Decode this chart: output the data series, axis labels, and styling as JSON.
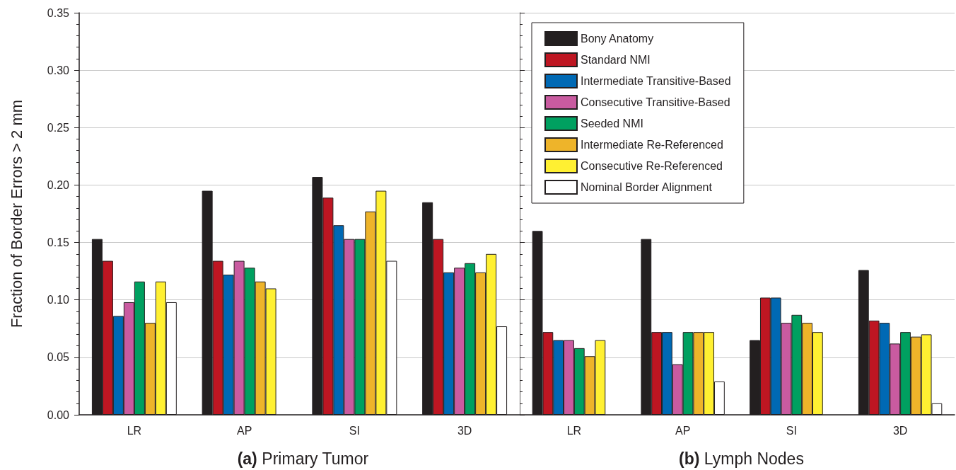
{
  "chart_data": [
    {
      "type": "bar",
      "xlabel": "(a) Primary Tumor",
      "ylabel": "Fraction of Border Errors > 2 mm",
      "categories": [
        "LR",
        "AP",
        "SI",
        "3D"
      ],
      "ylim": [
        0,
        0.35
      ],
      "yticks": [
        {
          "value": 0,
          "label": "0.00"
        },
        0.05,
        {
          "value": 0.1,
          "label": "0.10"
        },
        0.15,
        {
          "value": 0.2,
          "label": "0.20"
        },
        0.25,
        {
          "value": 0.3,
          "label": "0.30"
        },
        0.35
      ],
      "grid": "y",
      "legend": false,
      "series": [
        {
          "color": "#231f20",
          "values": [
            0.153,
            0.195,
            0.207,
            0.185
          ]
        },
        {
          "color": "#be1622",
          "values": [
            0.134,
            0.134,
            0.189,
            0.153
          ]
        },
        {
          "color": "#0069b4",
          "values": [
            0.086,
            0.122,
            0.165,
            0.124
          ]
        },
        {
          "color": "#c95ba0",
          "values": [
            0.098,
            0.134,
            0.153,
            0.128
          ]
        },
        {
          "color": "#00a060",
          "values": [
            0.116,
            0.128,
            0.153,
            0.132
          ]
        },
        {
          "color": "#eeb42a",
          "values": [
            0.08,
            0.116,
            0.177,
            0.124
          ]
        },
        {
          "color": "#fff032",
          "values": [
            0.116,
            0.11,
            0.195,
            0.14
          ]
        },
        {
          "color": "#ffffff",
          "values": [
            0.098,
            null,
            0.134,
            0.077
          ]
        }
      ]
    },
    {
      "type": "bar",
      "xlabel": "(b) Lymph Nodes",
      "categories": [
        "LR",
        "AP",
        "SI",
        "3D"
      ],
      "ylim": [
        0,
        0.35
      ],
      "yticks": [
        0,
        0.05,
        0.1,
        0.15,
        0.2,
        0.25,
        0.3,
        0.35
      ],
      "grid": "y",
      "legend": "top left",
      "tick_labels": "x",
      "series": [
        {
          "name": "Bony Anatomy",
          "color": "#231f20",
          "values": [
            0.16,
            0.153,
            0.065,
            0.126
          ]
        },
        {
          "name": "Standard NMI",
          "color": "#be1622",
          "values": [
            0.072,
            0.072,
            0.102,
            0.082
          ]
        },
        {
          "name": "Intermediate Transitive-Based",
          "color": "#0069b4",
          "values": [
            0.065,
            0.072,
            0.102,
            0.08
          ]
        },
        {
          "name": "Consecutive Transitive-Based",
          "color": "#c95ba0",
          "values": [
            0.065,
            0.044,
            0.08,
            0.062
          ]
        },
        {
          "name": "Seeded NMI",
          "color": "#00a060",
          "values": [
            0.058,
            0.072,
            0.087,
            0.072
          ]
        },
        {
          "name": "Intermediate Re-Referenced",
          "color": "#eeb42a",
          "values": [
            0.051,
            0.072,
            0.08,
            0.068
          ]
        },
        {
          "name": "Consecutive Re-Referenced",
          "color": "#fff032",
          "values": [
            0.065,
            0.072,
            0.072,
            0.07
          ]
        },
        {
          "name": "Nominal Border Alignment",
          "color": "#ffffff",
          "values": [
            null,
            0.029,
            null,
            0.01
          ]
        }
      ]
    }
  ]
}
